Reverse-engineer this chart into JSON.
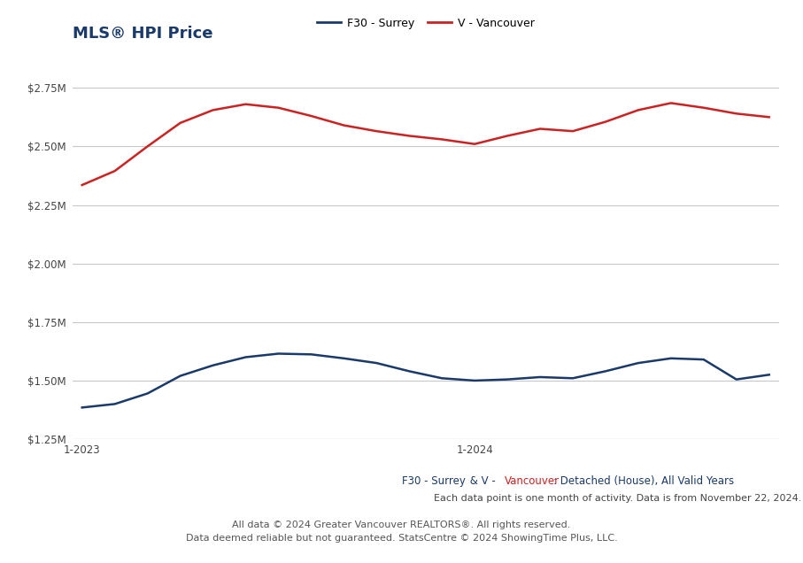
{
  "title": "MLS® HPI Price",
  "surrey_label": "F30 - Surrey",
  "vancouver_label": "V - Vancouver",
  "surrey_color": "#1a3a6b",
  "vancouver_color": "#cc2222",
  "x_tick_labels": [
    "1-2023",
    "1-2024"
  ],
  "x_tick_positions": [
    0,
    12
  ],
  "ylim": [
    1250000,
    2812500
  ],
  "yticks": [
    1250000,
    1500000,
    1750000,
    2000000,
    2250000,
    2500000,
    2750000
  ],
  "ytick_labels": [
    "$1.25M",
    "$1.50M",
    "$1.75M",
    "$2.00M",
    "$2.25M",
    "$2.50M",
    "$2.75M"
  ],
  "surrey_data": [
    1385000,
    1400000,
    1445000,
    1520000,
    1565000,
    1600000,
    1615000,
    1612000,
    1595000,
    1575000,
    1540000,
    1510000,
    1500000,
    1505000,
    1515000,
    1510000,
    1540000,
    1575000,
    1595000,
    1590000,
    1505000,
    1525000
  ],
  "vancouver_data": [
    2335000,
    2395000,
    2500000,
    2600000,
    2655000,
    2680000,
    2665000,
    2630000,
    2590000,
    2565000,
    2545000,
    2530000,
    2510000,
    2545000,
    2575000,
    2565000,
    2605000,
    2655000,
    2685000,
    2665000,
    2640000,
    2625000
  ],
  "subtitle_blue_1": "F30 - Surrey",
  "subtitle_blue_2": " & V - ",
  "subtitle_red": "Vancouver",
  "subtitle_blue_3": ": Detached (House), All Valid Years",
  "note1": "Each data point is one month of activity. Data is from November 22, 2024.",
  "footer1": "All data © 2024 Greater Vancouver REALTORS®. All rights reserved.",
  "footer2": "Data deemed reliable but not guaranteed. StatsCentre © 2024 ShowingTime Plus, LLC.",
  "bg_color": "#ffffff",
  "grid_color": "#c8c8c8",
  "title_color": "#1a3a6b",
  "text_color": "#444444",
  "footer_color": "#555555"
}
